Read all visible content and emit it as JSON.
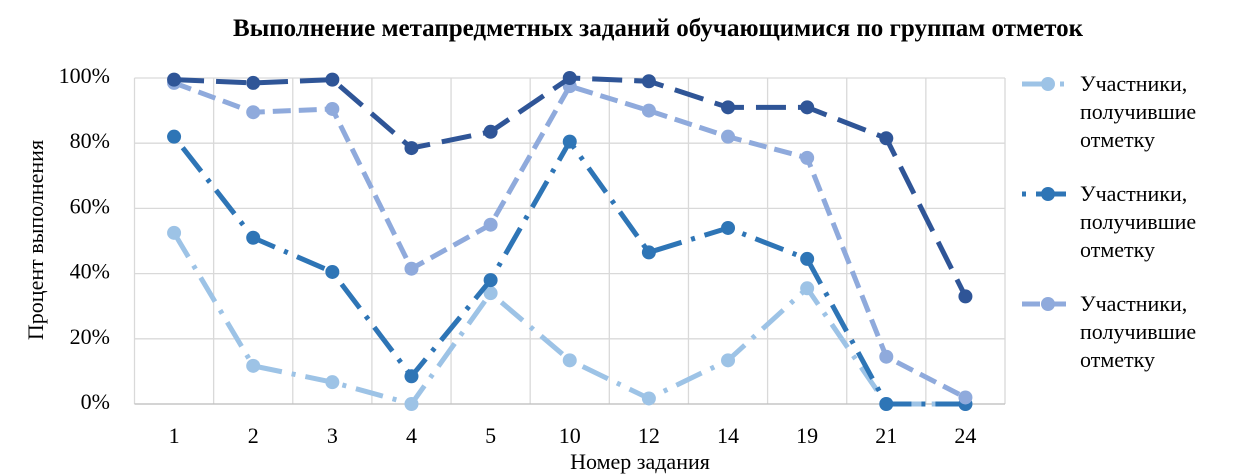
{
  "chart_data": {
    "type": "line",
    "title": "Выполнение метапредметных заданий обучающимися по группам отметок",
    "x_label": "Номер задания",
    "y_label": "Процент выполнения",
    "categories": [
      "1",
      "2",
      "3",
      "4",
      "5",
      "10",
      "12",
      "14",
      "19",
      "21",
      "24"
    ],
    "series": [
      {
        "name": "Участники, получившие отметку",
        "color": "#9dc3e6",
        "values": [
          52.5,
          11.7,
          6.7,
          0,
          34,
          13.4,
          1.7,
          13.4,
          35.5,
          0,
          0
        ]
      },
      {
        "name": "Участники, получившие отметку",
        "color": "#2e75b6",
        "values": [
          82,
          51,
          40.5,
          8.5,
          38,
          80.5,
          46.5,
          54,
          44.5,
          0,
          0
        ]
      },
      {
        "name": "Участники, получившие отметку",
        "color": "#8faadc",
        "values": [
          98.5,
          89.5,
          90.5,
          41.5,
          55,
          97.5,
          90,
          82,
          75.5,
          14.5,
          2
        ]
      },
      {
        "color": "#2f5597",
        "values": [
          99.5,
          98.5,
          99.5,
          78.5,
          83.5,
          100,
          99,
          91,
          91,
          81.5,
          33
        ]
      }
    ],
    "ylim": [
      0,
      100
    ],
    "yticks": [
      {
        "value": 0,
        "label": "0%"
      },
      {
        "value": 20,
        "label": "20%"
      },
      {
        "value": 40,
        "label": "40%"
      },
      {
        "value": 60,
        "label": "60%"
      },
      {
        "value": 80,
        "label": "80%"
      },
      {
        "value": 100,
        "label": "100%"
      }
    ],
    "grid": true,
    "legend": "right"
  }
}
